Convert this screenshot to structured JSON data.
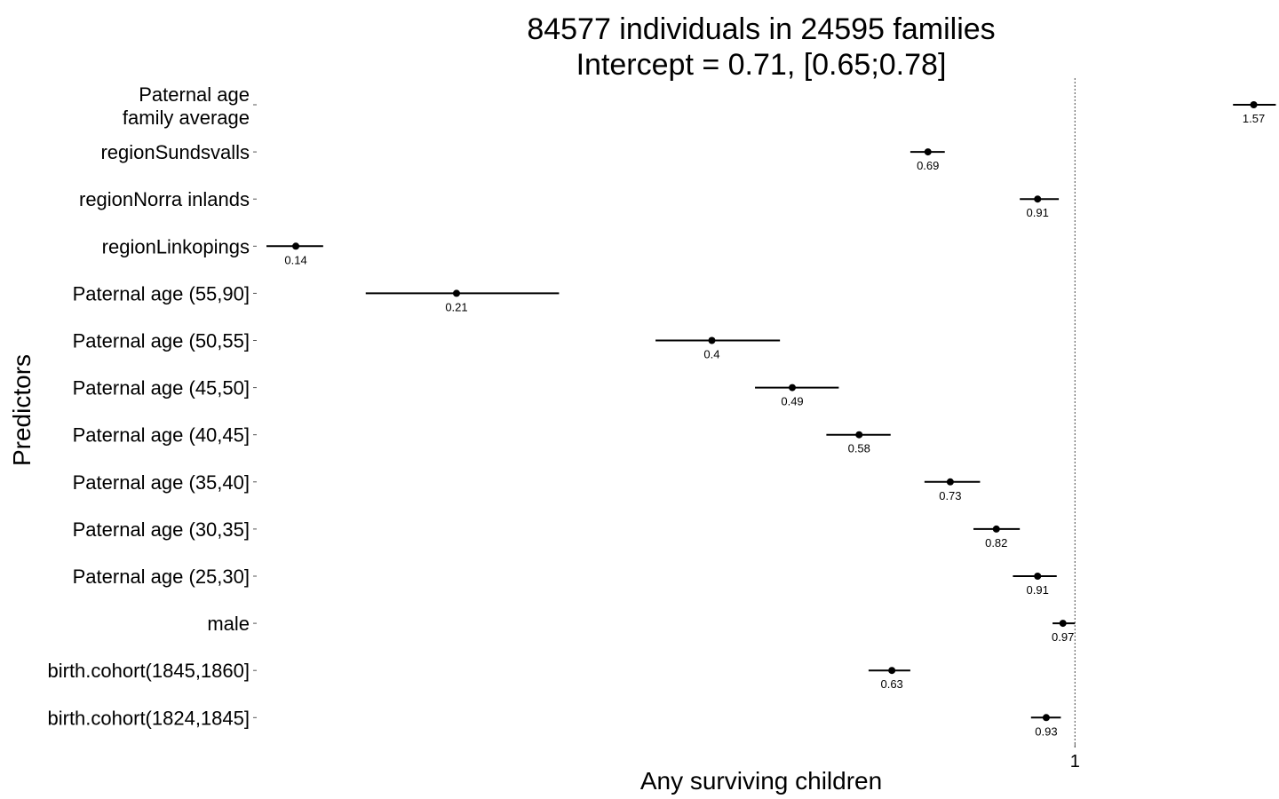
{
  "chart_data": {
    "type": "forest",
    "title": [
      "84577 individuals in 24595 families",
      "Intercept = 0.71, [0.65;0.78]"
    ],
    "xlabel": "Any surviving children",
    "ylabel": "Predictors",
    "reference_line": 1,
    "x_ticks": [
      {
        "value": 1,
        "label": "1"
      }
    ],
    "x_scale": "log",
    "xlim": [
      0.13,
      1.6
    ],
    "grid": false,
    "points": [
      {
        "category": [
          "Paternal age",
          "family average"
        ],
        "estimate": 1.57,
        "lower": 1.49,
        "upper": 1.66,
        "label": "1.57"
      },
      {
        "category": [
          "regionSundsvalls"
        ],
        "estimate": 0.69,
        "lower": 0.66,
        "upper": 0.72,
        "label": "0.69"
      },
      {
        "category": [
          "regionNorra inlands"
        ],
        "estimate": 0.91,
        "lower": 0.87,
        "upper": 0.96,
        "label": "0.91"
      },
      {
        "category": [
          "regionLinkopings"
        ],
        "estimate": 0.14,
        "lower": 0.13,
        "upper": 0.15,
        "label": "0.14"
      },
      {
        "category": [
          "Paternal age (55,90]"
        ],
        "estimate": 0.21,
        "lower": 0.167,
        "upper": 0.272,
        "label": "0.21"
      },
      {
        "category": [
          "Paternal age (50,55]"
        ],
        "estimate": 0.4,
        "lower": 0.347,
        "upper": 0.475,
        "label": "0.4"
      },
      {
        "category": [
          "Paternal age (45,50]"
        ],
        "estimate": 0.49,
        "lower": 0.446,
        "upper": 0.551,
        "label": "0.49"
      },
      {
        "category": [
          "Paternal age (40,45]"
        ],
        "estimate": 0.58,
        "lower": 0.534,
        "upper": 0.628,
        "label": "0.58"
      },
      {
        "category": [
          "Paternal age (35,40]"
        ],
        "estimate": 0.73,
        "lower": 0.684,
        "upper": 0.787,
        "label": "0.73"
      },
      {
        "category": [
          "Paternal age (30,35]"
        ],
        "estimate": 0.82,
        "lower": 0.774,
        "upper": 0.87,
        "label": "0.82"
      },
      {
        "category": [
          "Paternal age (25,30]"
        ],
        "estimate": 0.91,
        "lower": 0.855,
        "upper": 0.955,
        "label": "0.91"
      },
      {
        "category": [
          "male"
        ],
        "estimate": 0.97,
        "lower": 0.945,
        "upper": 1.0,
        "label": "0.97"
      },
      {
        "category": [
          "birth.cohort(1845,1860]"
        ],
        "estimate": 0.63,
        "lower": 0.594,
        "upper": 0.66,
        "label": "0.63"
      },
      {
        "category": [
          "birth.cohort(1824,1845]"
        ],
        "estimate": 0.93,
        "lower": 0.895,
        "upper": 0.965,
        "label": "0.93"
      }
    ]
  }
}
